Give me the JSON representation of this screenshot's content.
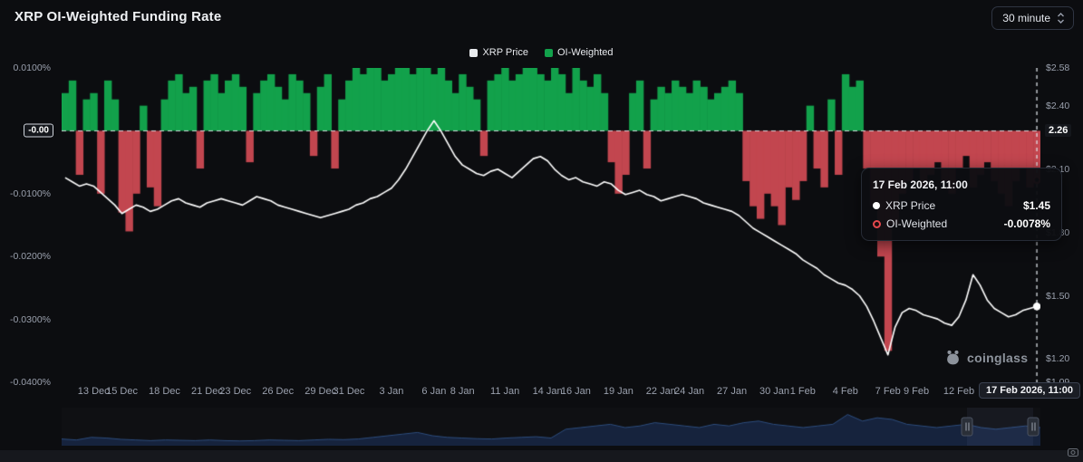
{
  "header": {
    "title": "XRP OI-Weighted Funding Rate",
    "interval_label": "30 minute"
  },
  "legend": {
    "items": [
      {
        "label": "XRP Price",
        "color": "#e9ebee"
      },
      {
        "label": "OI-Weighted",
        "color": "#12a14b"
      }
    ]
  },
  "tooltip": {
    "title": "17 Feb 2026, 11:00",
    "rows": [
      {
        "label": "XRP Price",
        "value": "$1.45"
      },
      {
        "label": "OI-Weighted",
        "value": "-0.0078%"
      }
    ]
  },
  "watermark": {
    "text": "coinglass"
  },
  "chart_data": {
    "type": "mixed",
    "title": "XRP OI-Weighted Funding Rate",
    "interval": "30 minute",
    "legend_position": "top-center",
    "grid": false,
    "funding_axis": {
      "min": -0.04,
      "max": 0.01,
      "zero_label": "-0.00",
      "ticks": [
        {
          "value": 0.01,
          "label": "0.0100%"
        },
        {
          "value": -0.01,
          "label": "-0.0100%"
        },
        {
          "value": -0.02,
          "label": "-0.0200%"
        },
        {
          "value": -0.03,
          "label": "-0.0300%"
        },
        {
          "value": -0.04,
          "label": "-0.0400%"
        }
      ]
    },
    "price_axis": {
      "min": 1.09,
      "max": 2.58,
      "zero_line_price_label": "2.26",
      "ticks": [
        {
          "value": 2.58,
          "label": "$2.58"
        },
        {
          "value": 2.4,
          "label": "$2.40"
        },
        {
          "value": 2.1,
          "label": "$2.10"
        },
        {
          "value": 1.8,
          "label": "$1.80"
        },
        {
          "value": 1.5,
          "label": "$1.50"
        },
        {
          "value": 1.2,
          "label": "$1.20"
        },
        {
          "value": 1.09,
          "label": "$1.09"
        }
      ]
    },
    "x_ticks": [
      {
        "day": 0,
        "label": "13 Dec"
      },
      {
        "day": 2,
        "label": "15 Dec"
      },
      {
        "day": 5,
        "label": "18 Dec"
      },
      {
        "day": 8,
        "label": "21 Dec"
      },
      {
        "day": 10,
        "label": "23 Dec"
      },
      {
        "day": 13,
        "label": "26 Dec"
      },
      {
        "day": 16,
        "label": "29 Dec"
      },
      {
        "day": 18,
        "label": "31 Dec"
      },
      {
        "day": 21,
        "label": "3 Jan"
      },
      {
        "day": 24,
        "label": "6 Jan"
      },
      {
        "day": 26,
        "label": "8 Jan"
      },
      {
        "day": 29,
        "label": "11 Jan"
      },
      {
        "day": 32,
        "label": "14 Jan"
      },
      {
        "day": 34,
        "label": "16 Jan"
      },
      {
        "day": 37,
        "label": "19 Jan"
      },
      {
        "day": 40,
        "label": "22 Jan"
      },
      {
        "day": 42,
        "label": "24 Jan"
      },
      {
        "day": 45,
        "label": "27 Jan"
      },
      {
        "day": 48,
        "label": "30 Jan"
      },
      {
        "day": 50,
        "label": "1 Feb"
      },
      {
        "day": 53,
        "label": "4 Feb"
      },
      {
        "day": 56,
        "label": "7 Feb"
      },
      {
        "day": 58,
        "label": "9 Feb"
      },
      {
        "day": 61,
        "label": "12 Feb"
      },
      {
        "day": 64,
        "label": "15 Feb"
      }
    ],
    "crosshair_label": "17 Feb 2026, 11:00",
    "last_point": {
      "time": "17 Feb 2026, 11:00",
      "price": 1.45,
      "funding_pct": -0.0078
    },
    "series": [
      {
        "name": "XRP Price",
        "type": "line",
        "axis": "price",
        "color": "#ffffff",
        "values": [
          2.06,
          2.04,
          2.02,
          2.03,
          2.02,
          1.99,
          1.96,
          1.93,
          1.89,
          1.91,
          1.93,
          1.92,
          1.9,
          1.91,
          1.93,
          1.95,
          1.96,
          1.94,
          1.93,
          1.92,
          1.94,
          1.95,
          1.96,
          1.95,
          1.94,
          1.93,
          1.95,
          1.97,
          1.96,
          1.95,
          1.93,
          1.92,
          1.91,
          1.9,
          1.89,
          1.88,
          1.87,
          1.88,
          1.89,
          1.9,
          1.91,
          1.93,
          1.94,
          1.96,
          1.97,
          1.99,
          2.01,
          2.05,
          2.1,
          2.16,
          2.22,
          2.28,
          2.33,
          2.28,
          2.22,
          2.16,
          2.12,
          2.1,
          2.08,
          2.07,
          2.09,
          2.1,
          2.08,
          2.06,
          2.09,
          2.12,
          2.15,
          2.16,
          2.14,
          2.1,
          2.07,
          2.05,
          2.06,
          2.04,
          2.03,
          2.02,
          2.04,
          2.03,
          2.0,
          1.98,
          1.99,
          2.0,
          1.98,
          1.97,
          1.95,
          1.96,
          1.97,
          1.98,
          1.97,
          1.96,
          1.94,
          1.93,
          1.92,
          1.91,
          1.9,
          1.88,
          1.85,
          1.82,
          1.8,
          1.78,
          1.76,
          1.74,
          1.72,
          1.7,
          1.67,
          1.65,
          1.63,
          1.6,
          1.58,
          1.56,
          1.55,
          1.53,
          1.5,
          1.45,
          1.38,
          1.3,
          1.22,
          1.35,
          1.42,
          1.44,
          1.43,
          1.41,
          1.4,
          1.39,
          1.37,
          1.36,
          1.4,
          1.48,
          1.6,
          1.55,
          1.48,
          1.44,
          1.42,
          1.4,
          1.41,
          1.43,
          1.44,
          1.45
        ]
      },
      {
        "name": "OI-Weighted",
        "type": "bar",
        "axis": "funding",
        "positive_color": "#12a14b",
        "negative_color": "#c2464f",
        "values": [
          0.006,
          0.008,
          -0.007,
          0.005,
          0.006,
          -0.01,
          0.008,
          0.005,
          -0.013,
          -0.016,
          -0.01,
          0.004,
          -0.009,
          -0.012,
          0.005,
          0.008,
          0.009,
          0.006,
          0.007,
          -0.006,
          0.008,
          0.009,
          0.006,
          0.008,
          0.009,
          0.007,
          -0.005,
          0.006,
          0.008,
          0.009,
          0.007,
          0.005,
          0.009,
          0.008,
          0.006,
          -0.004,
          0.007,
          0.009,
          -0.006,
          0.005,
          0.008,
          0.01,
          0.009,
          0.01,
          0.01,
          0.008,
          0.009,
          0.01,
          0.01,
          0.009,
          0.01,
          0.01,
          0.009,
          0.01,
          0.008,
          0.006,
          0.009,
          0.007,
          0.005,
          -0.004,
          0.008,
          0.009,
          0.01,
          0.008,
          0.009,
          0.01,
          0.01,
          0.009,
          0.008,
          0.01,
          0.009,
          0.006,
          0.01,
          0.008,
          0.007,
          0.009,
          0.006,
          -0.005,
          -0.01,
          -0.007,
          0.006,
          0.008,
          -0.006,
          0.005,
          0.007,
          0.006,
          0.008,
          0.007,
          0.006,
          0.008,
          0.007,
          0.005,
          0.006,
          0.007,
          0.008,
          0.006,
          -0.008,
          -0.012,
          -0.014,
          -0.01,
          -0.012,
          -0.015,
          -0.009,
          -0.011,
          -0.008,
          0.004,
          -0.006,
          -0.009,
          0.005,
          -0.007,
          0.009,
          0.007,
          0.008,
          -0.006,
          -0.012,
          -0.02,
          -0.035,
          -0.015,
          -0.01,
          -0.008,
          -0.006,
          -0.009,
          -0.007,
          -0.005,
          -0.008,
          -0.01,
          -0.006,
          -0.004,
          -0.009,
          -0.007,
          -0.005,
          -0.008,
          -0.01,
          -0.012,
          -0.008,
          -0.006,
          -0.009,
          -0.0078
        ]
      }
    ],
    "navigator": {
      "values": [
        0.15,
        0.12,
        0.2,
        0.18,
        0.14,
        0.12,
        0.1,
        0.12,
        0.11,
        0.1,
        0.12,
        0.1,
        0.09,
        0.1,
        0.12,
        0.11,
        0.1,
        0.12,
        0.14,
        0.13,
        0.15,
        0.2,
        0.25,
        0.3,
        0.35,
        0.25,
        0.2,
        0.18,
        0.16,
        0.15,
        0.18,
        0.2,
        0.22,
        0.18,
        0.45,
        0.5,
        0.55,
        0.6,
        0.5,
        0.55,
        0.65,
        0.6,
        0.55,
        0.5,
        0.6,
        0.55,
        0.65,
        0.7,
        0.6,
        0.55,
        0.5,
        0.55,
        0.6,
        0.9,
        0.7,
        0.8,
        0.75,
        0.6,
        0.55,
        0.5,
        0.55,
        0.6,
        0.5,
        0.45,
        0.5,
        0.55,
        0.5
      ],
      "range_start_frac": 0.925,
      "range_end_frac": 0.993
    },
    "colors": {
      "background": "#0c0d10",
      "axis_text": "#9aa0ad",
      "positive": "#12a14b",
      "negative": "#c2464f",
      "price_line": "#ffffff",
      "navigator_fill": "#16233d",
      "navigator_line": "#2d4d7e",
      "marker_red": "#e5484d"
    }
  }
}
